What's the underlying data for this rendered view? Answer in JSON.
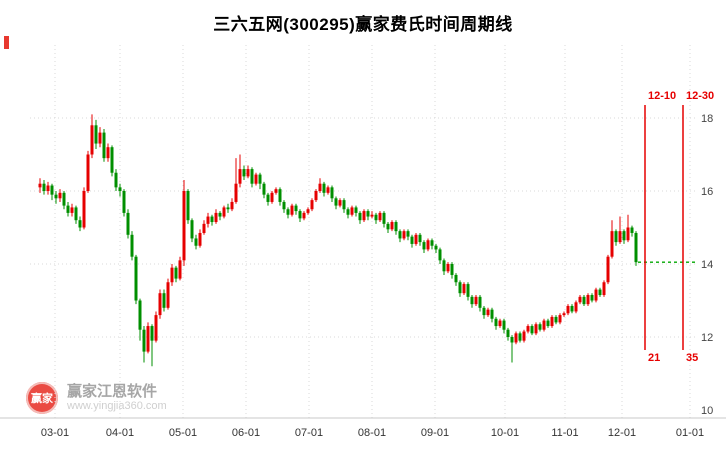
{
  "title": "三六五网(300295)赢家费氏时间周期线",
  "watermark": {
    "logo_text": "赢家",
    "name": "赢家江恩软件",
    "url": "www.yingjia360.com"
  },
  "colors": {
    "up": "#e60000",
    "down": "#008f00",
    "fib": "#e60000",
    "target": "#00a800",
    "grid": "#d9d9d9",
    "axis_text": "#444444",
    "x_label": "#333333"
  },
  "chart_data": {
    "type": "candlestick",
    "title": "三六五网(300295)赢家费氏时间周期线",
    "ylim": [
      10,
      18.6
    ],
    "y_ticks": [
      18,
      16,
      14,
      12,
      10
    ],
    "x_ticks": [
      "03-01",
      "04-01",
      "05-01",
      "06-01",
      "07-01",
      "08-01",
      "09-01",
      "10-01",
      "11-01",
      "12-01",
      "01-01"
    ],
    "last_price_line": 14.05,
    "fib_time_lines": [
      {
        "date_label": "12-10",
        "count_label": "21"
      },
      {
        "date_label": "12-30",
        "count_label": "35"
      }
    ],
    "candles": [
      [
        16.1,
        16.35,
        15.95,
        16.2
      ],
      [
        16.2,
        16.3,
        15.9,
        16.0
      ],
      [
        16.0,
        16.25,
        15.9,
        16.15
      ],
      [
        16.15,
        16.2,
        15.75,
        15.9
      ],
      [
        15.9,
        16.0,
        15.65,
        15.8
      ],
      [
        15.8,
        16.05,
        15.7,
        15.95
      ],
      [
        15.95,
        16.0,
        15.5,
        15.6
      ],
      [
        15.6,
        15.7,
        15.3,
        15.4
      ],
      [
        15.4,
        15.65,
        15.3,
        15.55
      ],
      [
        15.55,
        15.6,
        15.1,
        15.2
      ],
      [
        15.2,
        15.3,
        14.9,
        15.0
      ],
      [
        15.0,
        16.1,
        14.95,
        16.0
      ],
      [
        16.0,
        17.1,
        15.95,
        17.0
      ],
      [
        17.0,
        18.1,
        16.9,
        17.8
      ],
      [
        17.8,
        17.95,
        17.15,
        17.3
      ],
      [
        17.3,
        17.75,
        17.2,
        17.6
      ],
      [
        17.6,
        17.7,
        16.8,
        16.9
      ],
      [
        16.9,
        17.3,
        16.8,
        17.2
      ],
      [
        17.2,
        17.25,
        16.4,
        16.5
      ],
      [
        16.5,
        16.6,
        16.0,
        16.1
      ],
      [
        16.1,
        16.2,
        15.85,
        16.0
      ],
      [
        16.0,
        16.05,
        15.3,
        15.4
      ],
      [
        15.4,
        15.5,
        14.7,
        14.8
      ],
      [
        14.8,
        14.9,
        14.1,
        14.2
      ],
      [
        14.2,
        14.25,
        12.9,
        13.0
      ],
      [
        13.0,
        13.05,
        11.9,
        12.2
      ],
      [
        12.2,
        12.3,
        11.3,
        11.6
      ],
      [
        11.6,
        12.4,
        11.55,
        12.3
      ],
      [
        12.3,
        12.35,
        11.2,
        11.9
      ],
      [
        11.9,
        12.7,
        11.85,
        12.6
      ],
      [
        12.6,
        13.3,
        12.5,
        13.2
      ],
      [
        13.2,
        13.3,
        12.7,
        12.8
      ],
      [
        12.8,
        13.6,
        12.75,
        13.5
      ],
      [
        13.5,
        14.0,
        13.4,
        13.9
      ],
      [
        13.9,
        13.95,
        13.5,
        13.6
      ],
      [
        13.6,
        14.2,
        13.55,
        14.1
      ],
      [
        14.1,
        16.3,
        13.95,
        16.0
      ],
      [
        16.0,
        16.05,
        15.1,
        15.2
      ],
      [
        15.2,
        15.25,
        14.6,
        14.7
      ],
      [
        14.7,
        14.8,
        14.4,
        14.5
      ],
      [
        14.5,
        14.95,
        14.45,
        14.85
      ],
      [
        14.85,
        15.2,
        14.8,
        15.1
      ],
      [
        15.1,
        15.4,
        15.0,
        15.3
      ],
      [
        15.3,
        15.35,
        15.05,
        15.15
      ],
      [
        15.15,
        15.5,
        15.1,
        15.4
      ],
      [
        15.4,
        15.45,
        15.2,
        15.3
      ],
      [
        15.3,
        15.6,
        15.25,
        15.55
      ],
      [
        15.55,
        15.65,
        15.4,
        15.5
      ],
      [
        15.5,
        15.8,
        15.45,
        15.7
      ],
      [
        15.7,
        16.9,
        15.65,
        16.2
      ],
      [
        16.2,
        17.0,
        16.1,
        16.6
      ],
      [
        16.6,
        16.7,
        16.3,
        16.4
      ],
      [
        16.4,
        16.7,
        16.35,
        16.6
      ],
      [
        16.6,
        16.65,
        16.1,
        16.2
      ],
      [
        16.2,
        16.5,
        16.15,
        16.45
      ],
      [
        16.45,
        16.5,
        16.05,
        16.2
      ],
      [
        16.2,
        16.25,
        15.8,
        15.9
      ],
      [
        15.9,
        15.95,
        15.6,
        15.7
      ],
      [
        15.7,
        16.0,
        15.65,
        15.95
      ],
      [
        15.95,
        16.1,
        15.9,
        16.05
      ],
      [
        16.05,
        16.1,
        15.6,
        15.7
      ],
      [
        15.7,
        15.75,
        15.4,
        15.5
      ],
      [
        15.5,
        15.55,
        15.25,
        15.35
      ],
      [
        15.35,
        15.65,
        15.3,
        15.6
      ],
      [
        15.6,
        15.65,
        15.35,
        15.45
      ],
      [
        15.45,
        15.5,
        15.15,
        15.25
      ],
      [
        15.25,
        15.45,
        15.2,
        15.4
      ],
      [
        15.4,
        15.55,
        15.35,
        15.5
      ],
      [
        15.5,
        15.8,
        15.45,
        15.75
      ],
      [
        15.75,
        16.05,
        15.7,
        16.0
      ],
      [
        16.0,
        16.35,
        15.95,
        16.2
      ],
      [
        16.2,
        16.25,
        15.85,
        15.95
      ],
      [
        15.95,
        16.15,
        15.9,
        16.1
      ],
      [
        16.1,
        16.15,
        15.7,
        15.8
      ],
      [
        15.8,
        15.85,
        15.5,
        15.6
      ],
      [
        15.6,
        15.8,
        15.55,
        15.75
      ],
      [
        15.75,
        15.8,
        15.4,
        15.5
      ],
      [
        15.5,
        15.55,
        15.25,
        15.35
      ],
      [
        15.35,
        15.6,
        15.3,
        15.55
      ],
      [
        15.55,
        15.6,
        15.3,
        15.4
      ],
      [
        15.4,
        15.45,
        15.1,
        15.2
      ],
      [
        15.2,
        15.5,
        15.15,
        15.45
      ],
      [
        15.45,
        15.5,
        15.2,
        15.3
      ],
      [
        15.3,
        15.45,
        15.25,
        15.35
      ],
      [
        15.35,
        15.4,
        15.1,
        15.2
      ],
      [
        15.2,
        15.45,
        15.15,
        15.4
      ],
      [
        15.4,
        15.45,
        15.0,
        15.1
      ],
      [
        15.1,
        15.15,
        14.85,
        14.95
      ],
      [
        14.95,
        15.2,
        14.9,
        15.15
      ],
      [
        15.15,
        15.2,
        14.8,
        14.9
      ],
      [
        14.9,
        14.95,
        14.6,
        14.7
      ],
      [
        14.7,
        14.95,
        14.65,
        14.9
      ],
      [
        14.9,
        14.95,
        14.65,
        14.75
      ],
      [
        14.75,
        14.8,
        14.45,
        14.55
      ],
      [
        14.55,
        14.85,
        14.5,
        14.8
      ],
      [
        14.8,
        14.85,
        14.5,
        14.6
      ],
      [
        14.6,
        14.65,
        14.3,
        14.4
      ],
      [
        14.4,
        14.7,
        14.35,
        14.65
      ],
      [
        14.65,
        14.7,
        14.4,
        14.5
      ],
      [
        14.5,
        14.55,
        14.3,
        14.4
      ],
      [
        14.4,
        14.45,
        14.0,
        14.1
      ],
      [
        14.1,
        14.15,
        13.7,
        13.8
      ],
      [
        13.8,
        14.05,
        13.75,
        14.0
      ],
      [
        14.0,
        14.05,
        13.6,
        13.7
      ],
      [
        13.7,
        13.75,
        13.4,
        13.5
      ],
      [
        13.5,
        13.55,
        13.1,
        13.2
      ],
      [
        13.2,
        13.5,
        13.15,
        13.45
      ],
      [
        13.45,
        13.5,
        13.0,
        13.1
      ],
      [
        13.1,
        13.15,
        12.8,
        12.9
      ],
      [
        12.9,
        13.15,
        12.85,
        13.1
      ],
      [
        13.1,
        13.15,
        12.7,
        12.8
      ],
      [
        12.8,
        12.85,
        12.5,
        12.6
      ],
      [
        12.6,
        12.8,
        12.55,
        12.75
      ],
      [
        12.75,
        12.8,
        12.4,
        12.5
      ],
      [
        12.5,
        12.55,
        12.2,
        12.3
      ],
      [
        12.3,
        12.5,
        12.25,
        12.45
      ],
      [
        12.45,
        12.5,
        12.1,
        12.2
      ],
      [
        12.2,
        12.25,
        11.9,
        12.0
      ],
      [
        12.0,
        12.05,
        11.3,
        11.85
      ],
      [
        11.85,
        12.15,
        11.8,
        12.1
      ],
      [
        12.1,
        12.15,
        11.85,
        11.9
      ],
      [
        11.9,
        12.2,
        11.85,
        12.15
      ],
      [
        12.15,
        12.35,
        12.1,
        12.3
      ],
      [
        12.3,
        12.35,
        12.05,
        12.1
      ],
      [
        12.1,
        12.4,
        12.05,
        12.35
      ],
      [
        12.35,
        12.4,
        12.15,
        12.2
      ],
      [
        12.2,
        12.5,
        12.15,
        12.45
      ],
      [
        12.45,
        12.5,
        12.25,
        12.3
      ],
      [
        12.3,
        12.6,
        12.25,
        12.55
      ],
      [
        12.55,
        12.6,
        12.35,
        12.4
      ],
      [
        12.4,
        12.65,
        12.35,
        12.6
      ],
      [
        12.6,
        12.7,
        12.55,
        12.65
      ],
      [
        12.65,
        12.9,
        12.6,
        12.85
      ],
      [
        12.85,
        12.9,
        12.65,
        12.7
      ],
      [
        12.7,
        13.0,
        12.65,
        12.95
      ],
      [
        12.95,
        13.15,
        12.9,
        13.1
      ],
      [
        13.1,
        13.15,
        12.85,
        12.9
      ],
      [
        12.9,
        13.2,
        12.85,
        13.15
      ],
      [
        13.15,
        13.2,
        12.95,
        13.0
      ],
      [
        13.0,
        13.35,
        12.95,
        13.3
      ],
      [
        13.3,
        13.35,
        13.1,
        13.15
      ],
      [
        13.15,
        13.55,
        13.1,
        13.5
      ],
      [
        13.5,
        14.25,
        13.45,
        14.2
      ],
      [
        14.2,
        15.2,
        14.15,
        14.9
      ],
      [
        14.9,
        14.95,
        14.5,
        14.6
      ],
      [
        14.6,
        15.3,
        14.55,
        14.9
      ],
      [
        14.9,
        14.95,
        14.55,
        14.65
      ],
      [
        14.65,
        15.35,
        14.6,
        15.0
      ],
      [
        15.0,
        15.05,
        14.75,
        14.85
      ],
      [
        14.85,
        14.9,
        13.95,
        14.05
      ]
    ]
  }
}
